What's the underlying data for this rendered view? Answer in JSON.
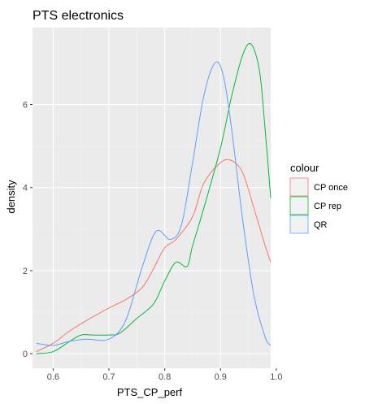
{
  "chart_data": {
    "type": "line",
    "title": "PTS electronics",
    "xlabel": "PTS_CP_perf",
    "ylabel": "density",
    "xlim": [
      0.563,
      0.99
    ],
    "ylim": [
      -0.35,
      7.85
    ],
    "x_ticks": [
      0.6,
      0.7,
      0.8,
      0.9,
      1.0
    ],
    "x_tick_labels": [
      "0.6",
      "0.7",
      "0.8",
      "0.9",
      "1.0"
    ],
    "y_ticks": [
      0,
      2,
      4,
      6
    ],
    "y_tick_labels": [
      "0",
      "2",
      "4",
      "6"
    ],
    "grid": true,
    "legend": {
      "title": "colour",
      "position": "right"
    },
    "series": [
      {
        "name": "CP once",
        "color": "#F8766D",
        "x": [
          0.57,
          0.6,
          0.63,
          0.66,
          0.7,
          0.73,
          0.76,
          0.78,
          0.8,
          0.82,
          0.85,
          0.87,
          0.9,
          0.92,
          0.94,
          0.96,
          0.98,
          0.99
        ],
        "y": [
          0.05,
          0.25,
          0.55,
          0.8,
          1.1,
          1.3,
          1.6,
          2.05,
          2.55,
          2.75,
          3.3,
          4.1,
          4.6,
          4.65,
          4.35,
          3.5,
          2.6,
          2.2
        ]
      },
      {
        "name": "CP rep",
        "color": "#00BA38",
        "x": [
          0.57,
          0.6,
          0.63,
          0.65,
          0.67,
          0.7,
          0.72,
          0.75,
          0.78,
          0.8,
          0.82,
          0.84,
          0.85,
          0.87,
          0.9,
          0.92,
          0.94,
          0.955,
          0.97,
          0.98,
          0.99
        ],
        "y": [
          0.0,
          0.05,
          0.3,
          0.45,
          0.45,
          0.45,
          0.5,
          0.85,
          1.2,
          1.75,
          2.2,
          2.1,
          2.6,
          3.5,
          4.95,
          6.2,
          7.2,
          7.45,
          6.8,
          5.4,
          3.75
        ]
      },
      {
        "name": "QR",
        "color": "#619CFF",
        "x": [
          0.57,
          0.6,
          0.63,
          0.66,
          0.7,
          0.73,
          0.76,
          0.785,
          0.81,
          0.83,
          0.85,
          0.87,
          0.89,
          0.905,
          0.92,
          0.94,
          0.96,
          0.98,
          0.99
        ],
        "y": [
          0.25,
          0.2,
          0.3,
          0.35,
          0.35,
          0.8,
          2.1,
          2.95,
          2.75,
          3.1,
          4.6,
          6.2,
          7.0,
          6.7,
          5.4,
          3.2,
          1.4,
          0.4,
          0.2
        ]
      }
    ]
  }
}
